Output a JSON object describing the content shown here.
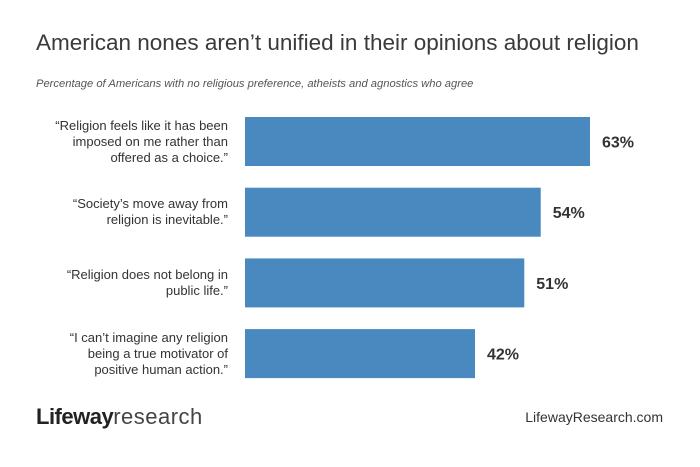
{
  "chart_data": {
    "type": "bar",
    "orientation": "horizontal",
    "title": "American nones aren’t unified in their opinions about religion",
    "subtitle": "Percentage of Americans with no religious preference, atheists and agnostics who agree",
    "categories": [
      "“Religion feels like it has been imposed on me rather than offered as a choice.”",
      "“Society’s move away from religion is inevitable.”",
      "“Religion does not belong in public life.”",
      "“I can’t imagine any religion being a true motivator of positive human action.”"
    ],
    "category_lines": [
      [
        "“Religion feels like it has been",
        "imposed on me rather than",
        "offered as a choice.”"
      ],
      [
        "“Society’s move away from",
        "religion is inevitable.”"
      ],
      [
        "“Religion does not belong in",
        "public life.”"
      ],
      [
        "“I can’t imagine any religion",
        "being a true motivator of",
        "positive human action.”"
      ]
    ],
    "values": [
      63,
      54,
      51,
      42
    ],
    "value_labels": [
      "63%",
      "54%",
      "51%",
      "42%"
    ],
    "xlabel": "",
    "ylabel": "",
    "xlim": [
      0,
      63
    ],
    "grid": false,
    "bar_color": "#4a89c0"
  },
  "footer": {
    "logo_bold": "Lifeway",
    "logo_light": "research",
    "url": "LifewayResearch.com"
  }
}
